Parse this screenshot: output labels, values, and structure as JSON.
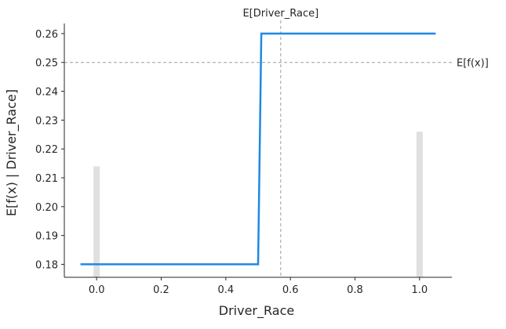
{
  "chart_data": {
    "type": "line",
    "xlabel": "Driver_Race",
    "ylabel": "E[f(x) | Driver_Race]",
    "xlim": [
      -0.1,
      1.1
    ],
    "ylim": [
      0.1755,
      0.2635
    ],
    "x_ticks": [
      0.0,
      0.2,
      0.4,
      0.6,
      0.8,
      1.0
    ],
    "x_tick_labels": [
      "0.0",
      "0.2",
      "0.4",
      "0.6",
      "0.8",
      "1.0"
    ],
    "y_ticks": [
      0.18,
      0.19,
      0.2,
      0.21,
      0.22,
      0.23,
      0.24,
      0.25,
      0.26
    ],
    "y_tick_labels": [
      "0.18",
      "0.19",
      "0.20",
      "0.21",
      "0.22",
      "0.23",
      "0.24",
      "0.25",
      "0.26"
    ],
    "series": [
      {
        "color": "#1e88e5",
        "x": [
          -0.05,
          0.5,
          0.51,
          1.05
        ],
        "y": [
          0.18,
          0.18,
          0.26,
          0.26
        ]
      }
    ],
    "histogram": {
      "color": "#e0e0e0",
      "x": [
        0.0,
        1.0
      ],
      "y": [
        0.214,
        0.226
      ]
    },
    "reference_lines": {
      "mean_x": {
        "value": 0.57,
        "label": "E[Driver_Race]"
      },
      "mean_y": {
        "value": 0.25,
        "label": "E[f(x)]"
      }
    },
    "grid": false,
    "legend": "none"
  }
}
